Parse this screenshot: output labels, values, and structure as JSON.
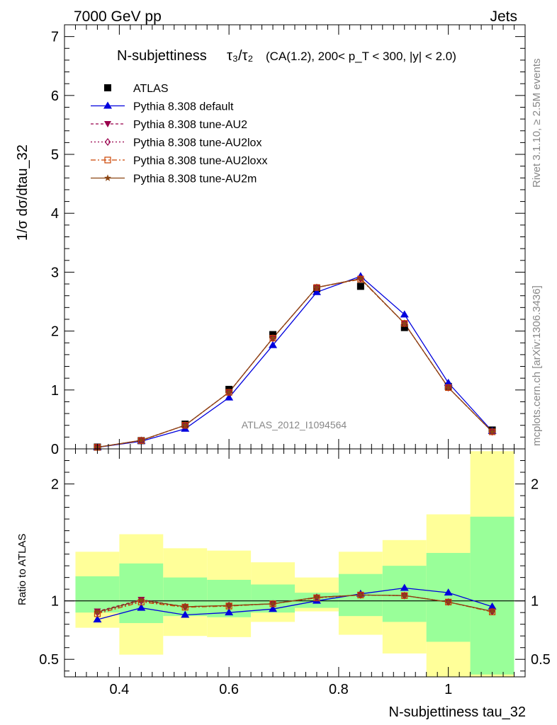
{
  "header": {
    "left": "7000 GeV pp",
    "right": "Jets"
  },
  "side": {
    "rivet": "Rivet 3.1.10, ≥ 2.5M events",
    "mcplots": "mcplots.cern.ch [arXiv:1306.3436]"
  },
  "colors": {
    "atlas": "#000000",
    "default": "#0000dd",
    "au2": "#99004c",
    "au2lox": "#99004c",
    "au2loxx": "#cc4400",
    "au2m": "#8b4513",
    "band_inner": "#99ff99",
    "band_outer": "#ffff99"
  },
  "chart_data": [
    {
      "type": "line",
      "title_main": "N-subjettiness",
      "title_tau_ratio": "τ₃/τ₂",
      "title_sel": "(CA(1.2), 200< p_T < 300, |y| < 2.0)",
      "ylabel": "1/σ dσ/dtau_32",
      "watermark": "ATLAS_2012_I1094564",
      "xlim": [
        0.3,
        1.14
      ],
      "ylim": [
        0,
        7.2
      ],
      "y_ticks": [
        0,
        1,
        2,
        3,
        4,
        5,
        6,
        7
      ],
      "x": [
        0.36,
        0.44,
        0.52,
        0.6,
        0.68,
        0.76,
        0.84,
        0.92,
        1.0,
        1.08
      ],
      "series": [
        {
          "name": "ATLAS",
          "key": "atlas",
          "marker": "square",
          "line": false,
          "values": [
            0.03,
            0.14,
            0.42,
            1.01,
            1.94,
            2.72,
            2.76,
            2.06,
            1.06,
            0.32
          ]
        },
        {
          "name": "Pythia 8.308 default",
          "key": "default",
          "marker": "triangle-up",
          "line": true,
          "values": [
            0.025,
            0.13,
            0.34,
            0.87,
            1.76,
            2.66,
            2.93,
            2.28,
            1.12,
            0.3
          ]
        },
        {
          "name": "Pythia 8.308 tune-AU2",
          "key": "au2",
          "marker": "triangle-down",
          "line": true,
          "dash": "4,3",
          "values": [
            0.028,
            0.145,
            0.4,
            0.96,
            1.88,
            2.74,
            2.89,
            2.13,
            1.04,
            0.29
          ]
        },
        {
          "name": "Pythia 8.308 tune-AU2lox",
          "key": "au2lox",
          "marker": "diamond",
          "line": true,
          "dash": "2,3",
          "values": [
            0.027,
            0.145,
            0.4,
            0.96,
            1.88,
            2.74,
            2.89,
            2.13,
            1.04,
            0.29
          ]
        },
        {
          "name": "Pythia 8.308 tune-AU2loxx",
          "key": "au2loxx",
          "marker": "square-open",
          "line": true,
          "dash": "7,3,2,3",
          "values": [
            0.027,
            0.14,
            0.4,
            0.96,
            1.88,
            2.74,
            2.88,
            2.13,
            1.04,
            0.29
          ]
        },
        {
          "name": "Pythia 8.308 tune-AU2m",
          "key": "au2m",
          "marker": "star",
          "line": true,
          "values": [
            0.028,
            0.145,
            0.4,
            0.96,
            1.88,
            2.74,
            2.89,
            2.13,
            1.04,
            0.29
          ]
        }
      ]
    },
    {
      "type": "line",
      "ylabel": "Ratio to ATLAS",
      "xlabel": "N-subjettiness tau_32",
      "xlim": [
        0.3,
        1.14
      ],
      "ylim": [
        0.35,
        2.3
      ],
      "y_ticks": [
        0.5,
        1,
        2
      ],
      "x_ticks": [
        0.4,
        0.6,
        0.8,
        1
      ],
      "x_tick_labels": [
        "0.4",
        "0.6",
        "0.8",
        "1"
      ],
      "y_tick_labels": [
        "0.5",
        "1",
        "2"
      ],
      "bins": [
        {
          "lo": 0.32,
          "hi": 0.4,
          "inner": [
            0.9,
            1.21
          ],
          "outer": [
            0.77,
            1.42
          ]
        },
        {
          "lo": 0.4,
          "hi": 0.48,
          "inner": [
            0.81,
            1.32
          ],
          "outer": [
            0.54,
            1.57
          ]
        },
        {
          "lo": 0.48,
          "hi": 0.56,
          "inner": [
            0.87,
            1.2
          ],
          "outer": [
            0.7,
            1.45
          ]
        },
        {
          "lo": 0.56,
          "hi": 0.64,
          "inner": [
            0.86,
            1.18
          ],
          "outer": [
            0.69,
            1.43
          ]
        },
        {
          "lo": 0.64,
          "hi": 0.72,
          "inner": [
            0.9,
            1.14
          ],
          "outer": [
            0.82,
            1.33
          ]
        },
        {
          "lo": 0.72,
          "hi": 0.8,
          "inner": [
            0.94,
            1.07
          ],
          "outer": [
            0.91,
            1.2
          ]
        },
        {
          "lo": 0.8,
          "hi": 0.88,
          "inner": [
            0.87,
            1.23
          ],
          "outer": [
            0.71,
            1.42
          ]
        },
        {
          "lo": 0.88,
          "hi": 0.96,
          "inner": [
            0.82,
            1.3
          ],
          "outer": [
            0.55,
            1.52
          ]
        },
        {
          "lo": 0.96,
          "hi": 1.04,
          "inner": [
            0.65,
            1.41
          ],
          "outer": [
            0.35,
            1.74
          ]
        },
        {
          "lo": 1.04,
          "hi": 1.12,
          "inner": [
            0.37,
            1.72
          ],
          "outer": [
            0.35,
            2.28
          ]
        }
      ],
      "series": [
        {
          "key": "default",
          "marker": "triangle-up",
          "values": [
            0.84,
            0.94,
            0.88,
            0.9,
            0.93,
            1.0,
            1.06,
            1.11,
            1.07,
            0.95
          ]
        },
        {
          "key": "au2",
          "marker": "triangle-down",
          "dash": "4,3",
          "values": [
            0.91,
            1.01,
            0.95,
            0.96,
            0.975,
            1.03,
            1.05,
            1.045,
            0.99,
            0.91
          ]
        },
        {
          "key": "au2lox",
          "marker": "diamond",
          "dash": "2,3",
          "values": [
            0.9,
            1.0,
            0.95,
            0.96,
            0.975,
            1.03,
            1.05,
            1.045,
            0.99,
            0.91
          ]
        },
        {
          "key": "au2loxx",
          "marker": "square-open",
          "dash": "7,3,2,3",
          "values": [
            0.89,
            0.99,
            0.945,
            0.955,
            0.975,
            1.025,
            1.05,
            1.045,
            0.99,
            0.905
          ]
        },
        {
          "key": "au2m",
          "marker": "star",
          "values": [
            0.905,
            1.005,
            0.95,
            0.96,
            0.975,
            1.03,
            1.05,
            1.045,
            0.99,
            0.91
          ]
        }
      ]
    }
  ]
}
